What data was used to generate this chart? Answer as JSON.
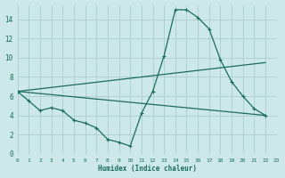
{
  "xlabel": "Humidex (Indice chaleur)",
  "background_color": "#cce8e8",
  "grid_color": "#aacccc",
  "line_color": "#1a6b60",
  "xlim": [
    0,
    23
  ],
  "ylim": [
    0,
    15.5
  ],
  "xtick_labels": [
    "0",
    "1",
    "2",
    "3",
    "4",
    "5",
    "6",
    "7",
    "8",
    "9",
    "10",
    "11",
    "12",
    "13",
    "14",
    "15",
    "16",
    "17",
    "18",
    "19",
    "20",
    "21",
    "22",
    "23"
  ],
  "ytick_values": [
    0,
    2,
    4,
    6,
    8,
    10,
    12,
    14
  ],
  "series1_x": [
    0,
    1,
    2,
    3,
    4,
    5,
    6,
    7,
    8,
    9,
    10,
    11,
    12,
    13,
    14,
    15,
    16,
    17,
    18,
    19,
    20,
    21,
    22
  ],
  "series1_y": [
    6.5,
    5.5,
    4.5,
    4.8,
    4.5,
    3.5,
    3.2,
    2.7,
    1.5,
    1.2,
    0.8,
    4.2,
    6.5,
    10.2,
    15.0,
    15.0,
    14.2,
    13.0,
    9.8,
    7.5,
    6.0,
    4.7,
    4.0
  ],
  "series2_x": [
    0,
    22
  ],
  "series2_y": [
    6.5,
    4.0
  ],
  "series3_x": [
    0,
    22
  ],
  "series3_y": [
    6.5,
    9.5
  ]
}
